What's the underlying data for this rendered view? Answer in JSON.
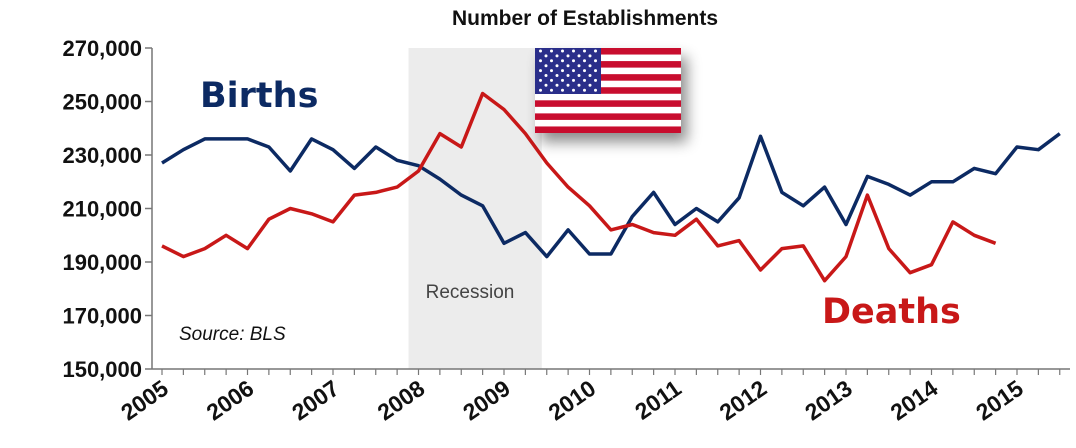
{
  "chart_data": {
    "type": "line",
    "title": "Number of Establishments",
    "xlabel": "",
    "ylabel": "",
    "ylim": [
      150000,
      270000
    ],
    "yticks": [
      "150,000",
      "170,000",
      "190,000",
      "210,000",
      "230,000",
      "250,000",
      "270,000"
    ],
    "xticks": [
      "2005",
      "2006",
      "2007",
      "2008",
      "2009",
      "2010",
      "2011",
      "2012",
      "2013",
      "2014",
      "2015"
    ],
    "x_start_year": 2005,
    "points_per_year": 4,
    "grid": false,
    "legend": "inline labels",
    "annotations": {
      "recession_label": "Recession",
      "source": "Source: BLS"
    },
    "recession_range": [
      2008.0,
      2009.5
    ],
    "series": [
      {
        "name": "Births",
        "color": "#0c2a63",
        "values": [
          227000,
          232000,
          236000,
          236000,
          236000,
          233000,
          224000,
          236000,
          232000,
          225000,
          233000,
          228000,
          226000,
          221000,
          215000,
          211000,
          197000,
          201000,
          192000,
          202000,
          193000,
          193000,
          207000,
          216000,
          204000,
          210000,
          205000,
          214000,
          237000,
          216000,
          211000,
          218000,
          204000,
          222000,
          219000,
          215000,
          220000,
          220000,
          225000,
          223000,
          233000,
          232000,
          238000
        ]
      },
      {
        "name": "Deaths",
        "color": "#c81818",
        "values": [
          196000,
          192000,
          195000,
          200000,
          195000,
          206000,
          210000,
          208000,
          205000,
          215000,
          216000,
          218000,
          224000,
          238000,
          233000,
          253000,
          247000,
          238000,
          227000,
          218000,
          211000,
          202000,
          204000,
          201000,
          200000,
          206000,
          196000,
          198000,
          187000,
          195000,
          196000,
          183000,
          192000,
          215000,
          195000,
          186000,
          189000,
          205000,
          200000,
          197000
        ]
      }
    ]
  },
  "flag": {
    "icon": "us-flag-icon",
    "stripe_red": "#c8102e",
    "canton_blue": "#2a2d8a"
  }
}
